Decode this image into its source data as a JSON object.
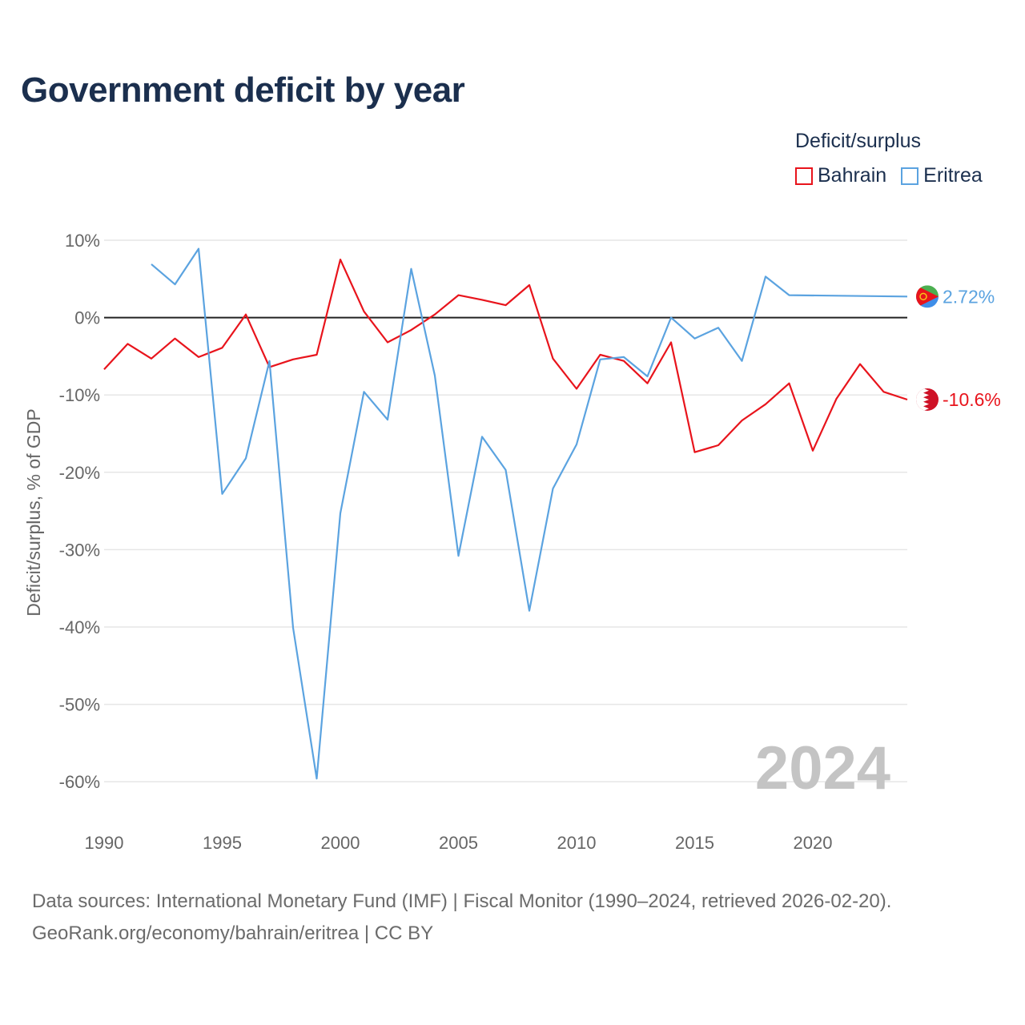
{
  "title": "Government deficit by year",
  "legend": {
    "title": "Deficit/surplus",
    "items": [
      {
        "name": "Bahrain",
        "color": "#e8141c"
      },
      {
        "name": "Eritrea",
        "color": "#5ba3e0"
      }
    ]
  },
  "chart_data": {
    "type": "line",
    "title": "Government deficit by year",
    "xlabel": "",
    "ylabel": "Deficit/surplus, % of GDP",
    "xlim": [
      1990,
      2024
    ],
    "ylim": [
      -65,
      10
    ],
    "x_ticks": [
      1990,
      1995,
      2000,
      2005,
      2010,
      2015,
      2020
    ],
    "y_ticks": [
      10,
      0,
      -10,
      -20,
      -30,
      -40,
      -50,
      -60
    ],
    "y_tick_labels": [
      "10%",
      "0%",
      "-10%",
      "-20%",
      "-30%",
      "-40%",
      "-50%",
      "-60%"
    ],
    "zero_line": true,
    "watermark_year": "2024",
    "series": [
      {
        "name": "Bahrain",
        "color": "#e8141c",
        "end_label": "-10.6%",
        "flag_icon": "bahrain-flag-icon",
        "x": [
          1990,
          1991,
          1992,
          1993,
          1994,
          1995,
          1996,
          1997,
          1998,
          1999,
          2000,
          2001,
          2002,
          2003,
          2004,
          2005,
          2006,
          2007,
          2008,
          2009,
          2010,
          2011,
          2012,
          2013,
          2014,
          2015,
          2016,
          2017,
          2018,
          2019,
          2020,
          2021,
          2022,
          2023,
          2024
        ],
        "values": [
          -6.7,
          -3.4,
          -5.3,
          -2.7,
          -5.1,
          -3.9,
          0.4,
          -6.4,
          -5.4,
          -4.8,
          7.5,
          0.8,
          -3.2,
          -1.6,
          0.4,
          2.9,
          2.3,
          1.6,
          4.2,
          -5.3,
          -9.2,
          -4.8,
          -5.6,
          -8.5,
          -3.2,
          -17.4,
          -16.5,
          -13.3,
          -11.2,
          -8.5,
          -17.2,
          -10.5,
          -6.0,
          -9.6,
          -10.6
        ]
      },
      {
        "name": "Eritrea",
        "color": "#5ba3e0",
        "end_label": "2.72%",
        "flag_icon": "eritrea-flag-icon",
        "x": [
          1992,
          1993,
          1994,
          1995,
          1996,
          1997,
          1998,
          1999,
          2000,
          2001,
          2002,
          2003,
          2004,
          2005,
          2006,
          2007,
          2008,
          2009,
          2010,
          2011,
          2012,
          2013,
          2014,
          2015,
          2016,
          2017,
          2018,
          2019,
          2024
        ],
        "values": [
          6.9,
          4.3,
          8.9,
          -22.8,
          -18.2,
          -5.6,
          -40.1,
          -59.6,
          -25.3,
          -9.6,
          -13.2,
          6.3,
          -7.5,
          -30.8,
          -15.4,
          -19.7,
          -37.9,
          -22.1,
          -16.4,
          -5.4,
          -5.1,
          -7.6,
          0.0,
          -2.7,
          -1.3,
          -5.6,
          5.3,
          2.9,
          2.72
        ]
      }
    ]
  },
  "source": {
    "line1": "Data sources: International Monetary Fund (IMF) | Fiscal Monitor (1990–2024, retrieved 2026-02-20).",
    "line2": "GeoRank.org/economy/bahrain/eritrea | CC BY"
  }
}
